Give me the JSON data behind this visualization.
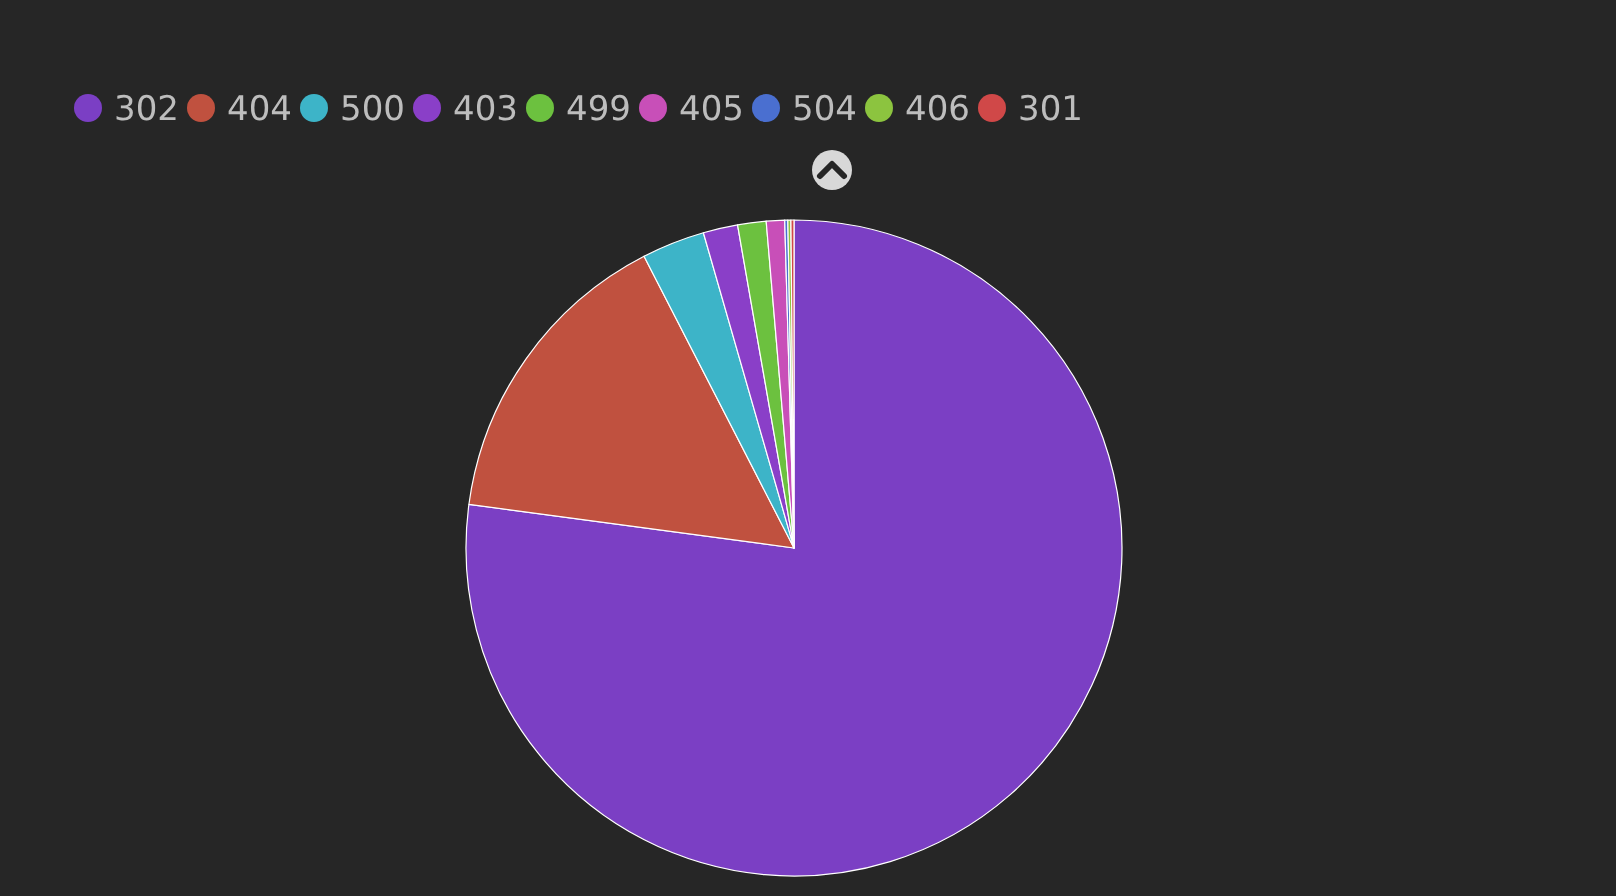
{
  "chart_data": {
    "type": "pie",
    "categories": [
      "302",
      "404",
      "500",
      "403",
      "499",
      "405",
      "504",
      "406",
      "301"
    ],
    "values": [
      77.05,
      15.3,
      3.1,
      1.7,
      1.4,
      0.9,
      0.15,
      0.15,
      0.15
    ],
    "colors": [
      "#7b3fc4",
      "#c0513f",
      "#3db4c8",
      "#8a3fc8",
      "#6cc13f",
      "#c84fb8",
      "#4a6fd0",
      "#8cc43f",
      "#d04848"
    ],
    "legend": "top left"
  }
}
